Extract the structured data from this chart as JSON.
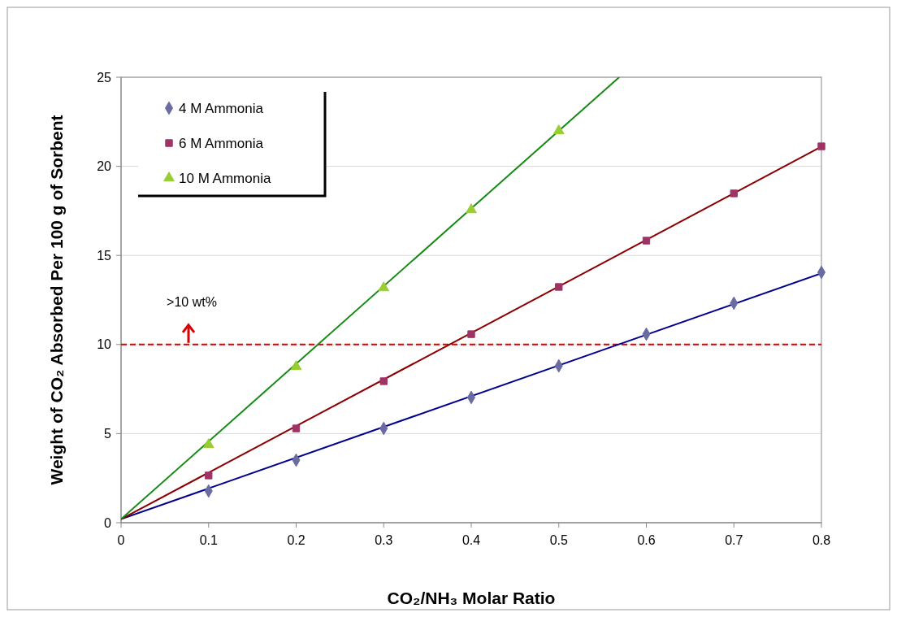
{
  "chart_data": {
    "type": "scatter",
    "xlabel": "CO₂/NH₃ Molar Ratio",
    "ylabel": "Weight of CO₂ Absorbed Per 100 g of Sorbent",
    "xlim": [
      0,
      0.8
    ],
    "xticks": [
      0,
      0.1,
      0.2,
      0.3,
      0.4,
      0.5,
      0.6,
      0.7,
      0.8
    ],
    "ylim": [
      0,
      25
    ],
    "yticks": [
      0,
      5,
      10,
      15,
      20,
      25
    ],
    "grid": "y",
    "legend": "top left",
    "series": [
      {
        "name": "4 M Ammonia",
        "color": "#6b6ba3",
        "marker": "diamond",
        "x": [
          0.1,
          0.2,
          0.3,
          0.4,
          0.5,
          0.6,
          0.7,
          0.8
        ],
        "values": [
          1.78,
          3.51,
          5.29,
          7.03,
          8.8,
          10.58,
          12.32,
          14.05
        ]
      },
      {
        "name": "6 M Ammonia",
        "color": "#9e3366",
        "marker": "square",
        "x": [
          0.1,
          0.2,
          0.3,
          0.4,
          0.5,
          0.6,
          0.7,
          0.8
        ],
        "values": [
          2.65,
          5.29,
          7.94,
          10.58,
          13.23,
          15.83,
          18.48,
          21.12
        ]
      },
      {
        "name": "10 M Ammonia",
        "color": "#9acd32",
        "marker": "triangle",
        "x": [
          0.1,
          0.2,
          0.3,
          0.4,
          0.5
        ],
        "values": [
          4.38,
          8.76,
          13.18,
          17.56,
          21.99
        ]
      },
      {
        "type": "line",
        "color": "#00008b",
        "x": [
          0,
          0.8
        ],
        "values": [
          0.2,
          14
        ]
      },
      {
        "type": "line",
        "color": "#8b0000",
        "x": [
          0,
          0.8
        ],
        "values": [
          0.2,
          21.1
        ]
      },
      {
        "type": "line",
        "color": "#138a13",
        "x": [
          0,
          0.569
        ],
        "values": [
          0.2,
          25
        ]
      }
    ],
    "ref_lines": [
      {
        "axis": "y",
        "value": 10,
        "label": ">10 wt%",
        "color": "#dd0000",
        "line_style": "dashed"
      }
    ]
  }
}
